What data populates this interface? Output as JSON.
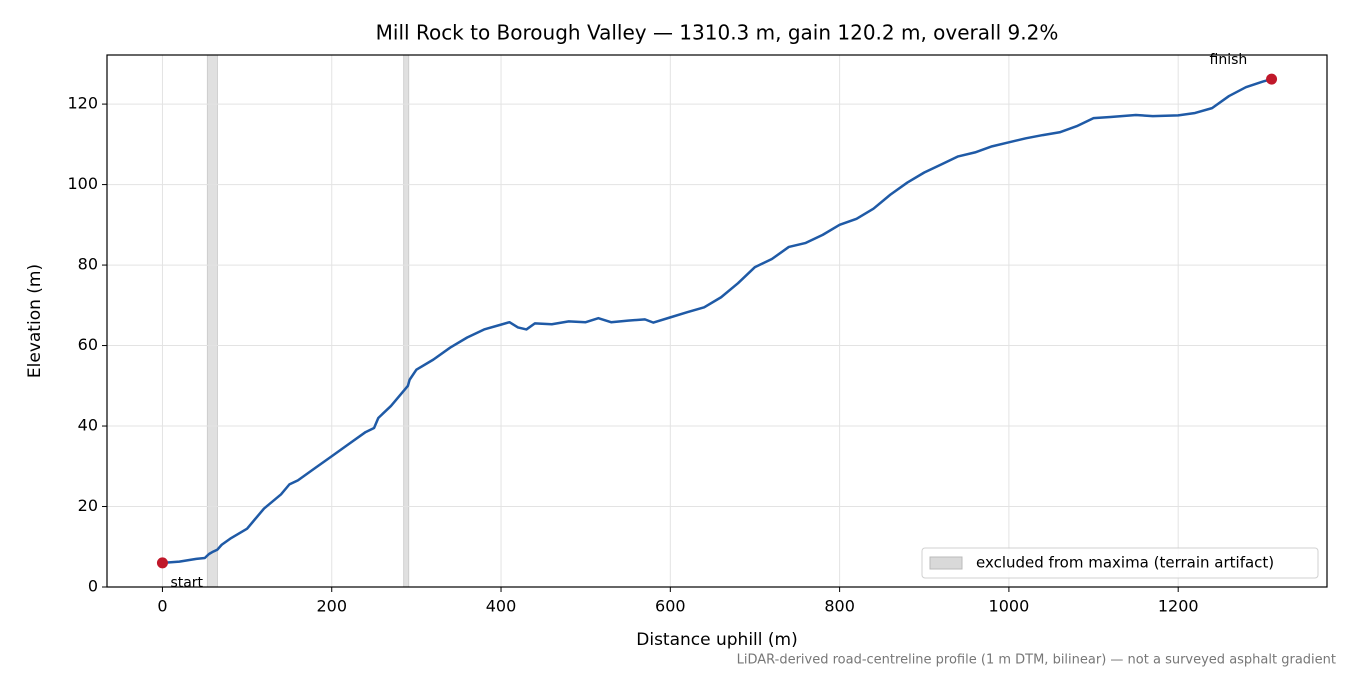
{
  "chart_data": {
    "type": "line",
    "title": "Mill Rock to Borough Valley — 1310.3 m, gain 120.2 m, overall 9.2%",
    "xlabel": "Distance uphill (m)",
    "ylabel": "Elevation (m)",
    "footnote": "LiDAR-derived road-centreline profile (1 m DTM, bilinear) — not a surveyed asphalt gradient",
    "color": "#1f5aa6",
    "marker_color": "#c0182a",
    "x": [
      0,
      20,
      40,
      50,
      55,
      60,
      65,
      70,
      80,
      100,
      120,
      140,
      150,
      160,
      180,
      200,
      220,
      240,
      250,
      255,
      270,
      290,
      292,
      300,
      320,
      340,
      360,
      380,
      400,
      410,
      420,
      430,
      440,
      460,
      480,
      500,
      515,
      530,
      550,
      570,
      580,
      600,
      620,
      640,
      660,
      680,
      700,
      720,
      740,
      760,
      780,
      800,
      820,
      840,
      860,
      880,
      900,
      920,
      940,
      960,
      980,
      1000,
      1020,
      1040,
      1060,
      1080,
      1100,
      1120,
      1150,
      1170,
      1200,
      1220,
      1240,
      1260,
      1280,
      1300,
      1310.3
    ],
    "values": [
      6.0,
      6.3,
      7.0,
      7.2,
      8.2,
      8.8,
      9.3,
      10.5,
      12,
      14.5,
      19.5,
      23,
      25.5,
      26.5,
      29.5,
      32.5,
      35.5,
      38.5,
      39.5,
      42,
      45,
      50,
      51.5,
      54,
      56.5,
      59.5,
      62,
      64,
      65.2,
      65.8,
      64.5,
      64,
      65.5,
      65.3,
      66,
      65.8,
      66.8,
      65.8,
      66.2,
      66.5,
      65.7,
      67,
      68.3,
      69.5,
      72,
      75.5,
      79.5,
      81.5,
      84.5,
      85.5,
      87.5,
      90,
      91.5,
      94,
      97.5,
      100.5,
      103,
      105,
      107,
      108,
      109.5,
      110.5,
      111.5,
      112.3,
      113,
      114.5,
      116.5,
      116.8,
      117.3,
      117,
      117.2,
      117.8,
      119,
      122,
      124.2,
      125.6,
      126.2
    ],
    "annotations": [
      "start",
      "finish"
    ],
    "excluded": {
      "label": "excluded from maxima (terrain artifact)",
      "color": "#d9d9d9",
      "spans": [
        [
          53,
          65
        ],
        [
          285,
          291
        ]
      ]
    },
    "xlim": [
      -65.5,
      1375.8
    ],
    "ylim": [
      0,
      132.2
    ],
    "xticks": [
      0,
      200,
      400,
      600,
      800,
      1000,
      1200
    ],
    "yticks": [
      0,
      20,
      40,
      60,
      80,
      100,
      120
    ],
    "grid": true,
    "legend": "lower right"
  }
}
